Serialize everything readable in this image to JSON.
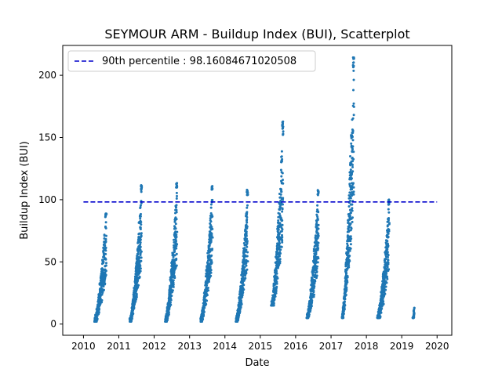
{
  "chart_data": {
    "type": "scatter",
    "title": "SEYMOUR ARM - Buildup Index (BUI), Scatterplot",
    "xlabel": "Date",
    "ylabel": "Buildup Index (BUI)",
    "xlim": [
      "2009-06-01",
      "2020-06-01"
    ],
    "ylim": [
      -9,
      224
    ],
    "x_ticks": [
      "2010",
      "2011",
      "2012",
      "2013",
      "2014",
      "2015",
      "2016",
      "2017",
      "2018",
      "2019",
      "2020"
    ],
    "y_ticks": [
      0,
      50,
      100,
      150,
      200
    ],
    "grid": false,
    "legend": {
      "placement": "top-left",
      "entries": [
        "90th percentile : 98.16084671020508"
      ]
    },
    "reference_line": {
      "label": "90th percentile : 98.16084671020508",
      "value": 98.16084671020508,
      "x_range": [
        "2010-01-01",
        "2020-01-01"
      ],
      "style": "dashed",
      "color": "#0000cc"
    },
    "series": [
      {
        "color": "#1f77b4",
        "seasons": [
          {
            "start": "2010-04-25",
            "end": "2010-08-25",
            "min": 2,
            "peak": 89
          },
          {
            "start": "2011-04-25",
            "end": "2011-08-25",
            "min": 2,
            "peak": 112
          },
          {
            "start": "2012-04-25",
            "end": "2012-08-25",
            "min": 2,
            "peak": 114
          },
          {
            "start": "2013-04-25",
            "end": "2013-08-25",
            "min": 2,
            "peak": 111
          },
          {
            "start": "2014-04-25",
            "end": "2014-08-25",
            "min": 2,
            "peak": 108
          },
          {
            "start": "2015-04-25",
            "end": "2015-08-25",
            "min": 15,
            "peak": 163
          },
          {
            "start": "2016-04-25",
            "end": "2016-08-25",
            "min": 5,
            "peak": 108
          },
          {
            "start": "2017-04-25",
            "end": "2017-08-25",
            "min": 5,
            "peak": 215
          },
          {
            "start": "2018-04-25",
            "end": "2018-08-25",
            "min": 5,
            "peak": 100
          },
          {
            "start": "2019-04-25",
            "end": "2019-05-10",
            "min": 5,
            "peak": 13
          }
        ]
      }
    ]
  }
}
